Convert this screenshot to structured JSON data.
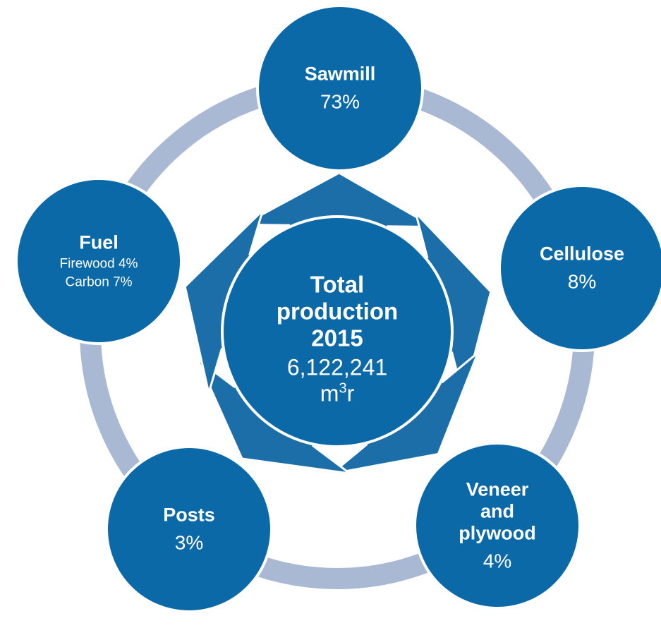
{
  "center": {
    "title": "Total production 2015",
    "value": "6,122,241",
    "unit": {
      "base": "m",
      "sup": "3",
      "suffix": "r"
    }
  },
  "nodes": [
    {
      "label": "Sawmill",
      "value": "73%"
    },
    {
      "label": "Cellulose",
      "value": "8%"
    },
    {
      "label": "Veneer and plywood",
      "value": "4%"
    },
    {
      "label": "Posts",
      "value": "3%"
    },
    {
      "label": "Fuel",
      "details": [
        "Firewood 4%",
        "Carbon 7%"
      ]
    }
  ]
}
